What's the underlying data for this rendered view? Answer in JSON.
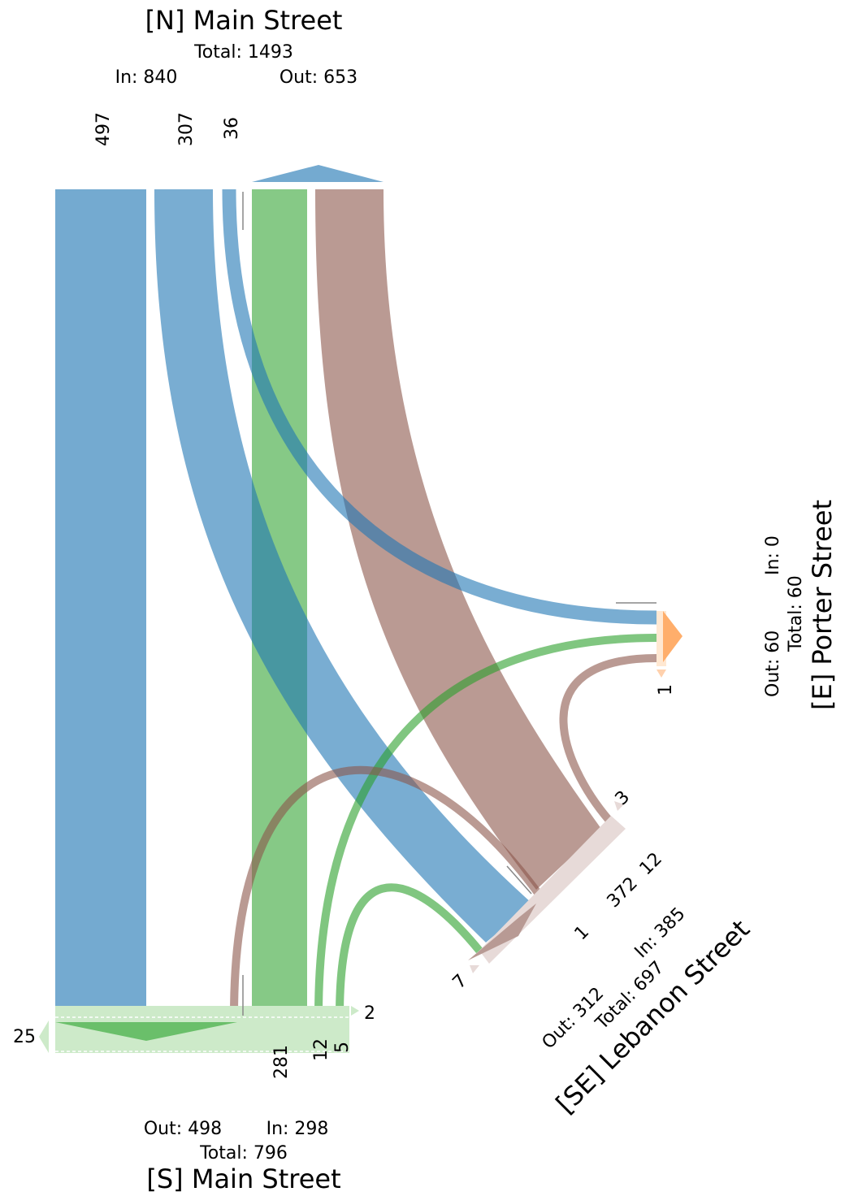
{
  "colors": {
    "north": "#1f77b4",
    "east": "#ff7f0e",
    "south": "#2ca02c",
    "southeast": "#8c564b",
    "north_light": "#74aad0",
    "south_light": "#7fc67f",
    "southeast_light": "#b89a94",
    "east_light": "#ffae6b",
    "south_pale": "#cdeac9",
    "southeast_pale": "#e7dad8"
  },
  "legs": {
    "north": {
      "title": "[N] Main Street",
      "total": "Total: 1493",
      "in": "In: 840",
      "out": "Out: 653",
      "flows": [
        "497",
        "307",
        "36"
      ]
    },
    "east": {
      "title": "[E] Porter Street",
      "total": "Total: 60",
      "in": "In: 0",
      "out": "Out: 60",
      "flows": [
        "1"
      ]
    },
    "southeast": {
      "title": "[SE] Lebanon Street",
      "total": "Total: 697",
      "in": "In: 385",
      "out": "Out: 312",
      "flows": [
        "3",
        "12",
        "372",
        "1",
        "7"
      ]
    },
    "south": {
      "title": "[S] Main Street",
      "total": "Total: 796",
      "in": "In: 298",
      "out": "Out: 498",
      "flows": [
        "25",
        "2",
        "281",
        "12",
        "5"
      ]
    }
  }
}
